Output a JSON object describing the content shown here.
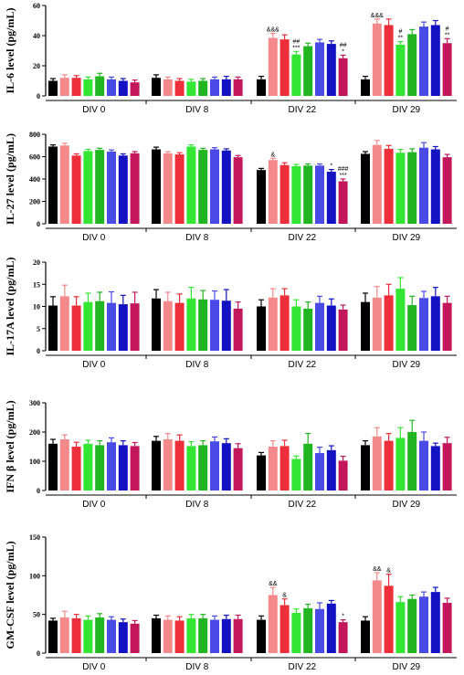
{
  "colors": [
    "#000000",
    "#f4898c",
    "#ec2f3b",
    "#33e633",
    "#22b522",
    "#4a4ae6",
    "#1212c2",
    "#c2185b"
  ],
  "chart_data": [
    {
      "type": "bar",
      "ylabel": "IL-6 level (pg/mL)",
      "ylim": [
        0,
        60
      ],
      "yticks": [
        0,
        20,
        40,
        60
      ],
      "groups": [
        "DIV 0",
        "DIV 8",
        "DIV 22",
        "DIV 29"
      ],
      "values": [
        [
          10,
          12,
          12,
          11,
          13,
          11,
          10,
          9
        ],
        [
          12,
          11,
          10,
          9.5,
          10,
          11,
          11,
          11
        ],
        [
          11,
          38.5,
          37.5,
          27.5,
          33,
          35.5,
          34.5,
          25
        ],
        [
          11,
          48,
          47,
          34,
          41,
          46,
          47,
          35
        ]
      ],
      "errors": [
        [
          1.5,
          2,
          1.5,
          1.5,
          2,
          1.5,
          1.5,
          1.5
        ],
        [
          2,
          1.5,
          1.5,
          1.5,
          1.5,
          1.5,
          2,
          1.5
        ],
        [
          2,
          3,
          3,
          2,
          2,
          2,
          2,
          2
        ],
        [
          2,
          3,
          4,
          2,
          3,
          3,
          3,
          3
        ]
      ],
      "annotations": [
        {
          "group": 2,
          "bar": 1,
          "lines": [
            "&&&"
          ]
        },
        {
          "group": 2,
          "bar": 3,
          "lines": [
            "##",
            "***"
          ]
        },
        {
          "group": 2,
          "bar": 7,
          "lines": [
            "##",
            "*"
          ]
        },
        {
          "group": 3,
          "bar": 1,
          "lines": [
            "&&&"
          ]
        },
        {
          "group": 3,
          "bar": 3,
          "lines": [
            "#",
            "**"
          ]
        },
        {
          "group": 3,
          "bar": 7,
          "lines": [
            "#",
            "**"
          ]
        }
      ]
    },
    {
      "type": "bar",
      "ylabel": "IL-27 level (pg/mL)",
      "ylim": [
        0,
        800
      ],
      "yticks": [
        0,
        200,
        400,
        600,
        800
      ],
      "groups": [
        "DIV 0",
        "DIV 8",
        "DIV 22",
        "DIV 29"
      ],
      "values": [
        [
          690,
          700,
          610,
          650,
          660,
          645,
          610,
          630
        ],
        [
          665,
          630,
          620,
          690,
          660,
          665,
          655,
          595
        ],
        [
          480,
          570,
          525,
          515,
          520,
          520,
          465,
          380
        ],
        [
          625,
          705,
          670,
          635,
          640,
          680,
          665,
          595
        ]
      ],
      "errors": [
        [
          15,
          20,
          15,
          15,
          15,
          15,
          15,
          15
        ],
        [
          20,
          15,
          15,
          15,
          15,
          15,
          15,
          15
        ],
        [
          15,
          15,
          20,
          15,
          15,
          15,
          20,
          20
        ],
        [
          20,
          40,
          30,
          30,
          30,
          45,
          25,
          25
        ]
      ],
      "annotations": [
        {
          "group": 2,
          "bar": 1,
          "lines": [
            "&"
          ]
        },
        {
          "group": 2,
          "bar": 6,
          "lines": [
            "*"
          ]
        },
        {
          "group": 2,
          "bar": 7,
          "lines": [
            "###",
            "***"
          ]
        }
      ]
    },
    {
      "type": "bar",
      "ylabel": "IL-17A level (pg/mL)",
      "ylim": [
        0,
        20
      ],
      "yticks": [
        0,
        5,
        10,
        15,
        20
      ],
      "groups": [
        "DIV 0",
        "DIV 8",
        "DIV 22",
        "DIV 29"
      ],
      "values": [
        [
          10.2,
          12.3,
          10.2,
          11.0,
          11.2,
          10.8,
          10.5,
          10.7
        ],
        [
          11.8,
          11.2,
          10.8,
          11.8,
          11.6,
          11.5,
          11.3,
          9.5
        ],
        [
          10.0,
          12.0,
          12.5,
          10.0,
          9.5,
          10.8,
          10.2,
          9.3
        ],
        [
          11.0,
          12.0,
          12.5,
          14.0,
          10.3,
          11.9,
          12.3,
          10.8
        ]
      ],
      "errors": [
        [
          2,
          2.5,
          2,
          2,
          2,
          2.5,
          2,
          2.5
        ],
        [
          2,
          2,
          2,
          2.5,
          2,
          2,
          2.5,
          1.5
        ],
        [
          1.5,
          2,
          1.5,
          1.5,
          1.5,
          1.5,
          1.5,
          1
        ],
        [
          2,
          2.5,
          2.5,
          2.5,
          2,
          1.5,
          2,
          1.5
        ]
      ],
      "annotations": []
    },
    {
      "type": "bar",
      "ylabel": "IFN β level (pg/mL)",
      "ylim": [
        0,
        300
      ],
      "yticks": [
        0,
        100,
        200,
        300
      ],
      "groups": [
        "DIV 0",
        "DIV 8",
        "DIV 22",
        "DIV 29"
      ],
      "values": [
        [
          160,
          175,
          150,
          160,
          155,
          165,
          155,
          152
        ],
        [
          170,
          175,
          170,
          152,
          155,
          168,
          162,
          145
        ],
        [
          120,
          150,
          152,
          108,
          160,
          128,
          138,
          102
        ],
        [
          155,
          185,
          170,
          180,
          200,
          170,
          152,
          162
        ]
      ],
      "errors": [
        [
          15,
          15,
          15,
          12,
          15,
          15,
          15,
          12
        ],
        [
          15,
          20,
          20,
          15,
          15,
          15,
          15,
          15
        ],
        [
          10,
          20,
          20,
          10,
          35,
          20,
          15,
          15
        ],
        [
          15,
          30,
          25,
          35,
          40,
          30,
          10,
          20
        ]
      ],
      "annotations": []
    },
    {
      "type": "bar",
      "ylabel": "GM-CSF level (pg/mL)",
      "ylim": [
        0,
        150
      ],
      "yticks": [
        0,
        50,
        100,
        150
      ],
      "groups": [
        "DIV 0",
        "DIV 8",
        "DIV 22",
        "DIV 29"
      ],
      "values": [
        [
          42,
          46,
          45,
          43,
          46,
          43,
          40,
          38
        ],
        [
          45,
          43,
          42,
          45,
          45,
          43,
          44,
          44
        ],
        [
          43,
          75,
          62,
          52,
          58,
          57,
          64,
          40
        ],
        [
          42,
          94,
          87,
          66,
          70,
          73,
          79,
          65
        ]
      ],
      "errors": [
        [
          3,
          8,
          5,
          5,
          5,
          4,
          4,
          4
        ],
        [
          4,
          5,
          5,
          5,
          5,
          5,
          5,
          5
        ],
        [
          5,
          10,
          8,
          5,
          5,
          8,
          4,
          3
        ],
        [
          5,
          10,
          15,
          7,
          5,
          6,
          6,
          6
        ]
      ],
      "annotations": [
        {
          "group": 2,
          "bar": 1,
          "lines": [
            "&&"
          ]
        },
        {
          "group": 2,
          "bar": 2,
          "lines": [
            "&"
          ]
        },
        {
          "group": 2,
          "bar": 7,
          "lines": [
            "*"
          ]
        },
        {
          "group": 3,
          "bar": 1,
          "lines": [
            "&&"
          ]
        },
        {
          "group": 3,
          "bar": 2,
          "lines": [
            "&"
          ]
        }
      ]
    }
  ]
}
